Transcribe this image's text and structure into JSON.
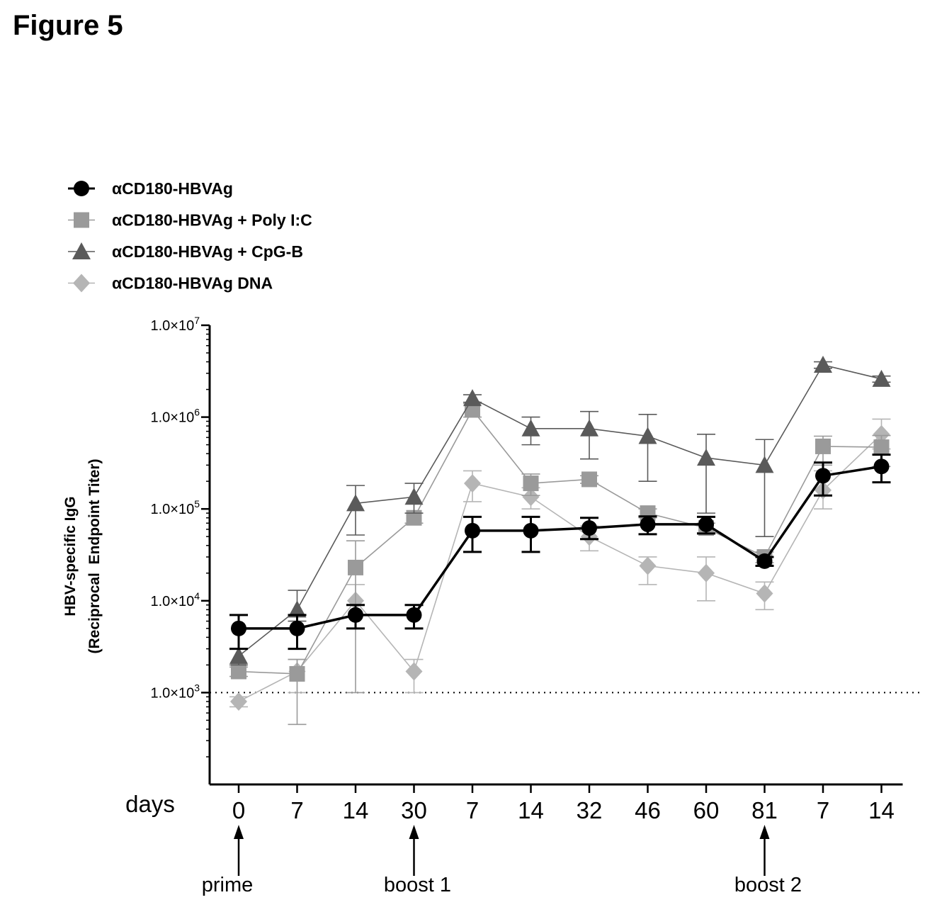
{
  "figure_label": "Figure 5",
  "chart_data": {
    "type": "line",
    "title": "",
    "xlabel": "days",
    "ylabel": "HBV-specific IgG",
    "ylabel_line2": "(Reciprocal  Endpoint Titer)",
    "y_scale": "log",
    "ylim": [
      100,
      10000000
    ],
    "y_ticks": [
      {
        "value": 1000,
        "label": "1.0×10",
        "exp": "3"
      },
      {
        "value": 10000,
        "label": "1.0×10",
        "exp": "4"
      },
      {
        "value": 100000,
        "label": "1.0×10",
        "exp": "5"
      },
      {
        "value": 1000000,
        "label": "1.0×10",
        "exp": "6"
      },
      {
        "value": 10000000,
        "label": "1.0×10",
        "exp": "7"
      }
    ],
    "categories": [
      "0",
      "7",
      "14",
      "30",
      "7",
      "14",
      "32",
      "46",
      "60",
      "81",
      "7",
      "14"
    ],
    "reference_line": 1000,
    "annotations": [
      {
        "label": "prime",
        "category_index": 0
      },
      {
        "label": "boost 1",
        "category_index": 3
      },
      {
        "label": "boost 2",
        "category_index": 9
      }
    ],
    "legend_position": "top-left",
    "series": [
      {
        "name": "αCD180-HBVAg",
        "marker": "circle",
        "color": "#000000",
        "values": [
          5000,
          5000,
          7000,
          7000,
          58000,
          58000,
          62000,
          68000,
          68000,
          27000,
          230000,
          290000
        ],
        "err_low": [
          3000,
          3000,
          5000,
          5000,
          34000,
          34000,
          47000,
          53000,
          54000,
          24000,
          140000,
          195000
        ],
        "err_high": [
          7000,
          7000,
          9000,
          9000,
          82000,
          82000,
          80000,
          83000,
          82000,
          30000,
          320000,
          390000
        ]
      },
      {
        "name": "αCD180-HBVAg + Poly I:C",
        "marker": "square",
        "color": "#9a9a9a",
        "values": [
          1700,
          1600,
          23000,
          80000,
          1200000,
          190000,
          210000,
          90000,
          62000,
          30000,
          480000,
          470000
        ],
        "err_low": [
          1500,
          450,
          1000,
          70000,
          1000000,
          140000,
          190000,
          80000,
          55000,
          26000,
          300000,
          290000
        ],
        "err_high": [
          1900,
          2300,
          45000,
          90000,
          1400000,
          240000,
          230000,
          100000,
          70000,
          34000,
          620000,
          630000
        ]
      },
      {
        "name": "αCD180-HBVAg + CpG-B",
        "marker": "triangle",
        "color": "#5a5a5a",
        "values": [
          2500,
          8000,
          115000,
          135000,
          1600000,
          750000,
          750000,
          620000,
          360000,
          300000,
          3700000,
          2600000
        ],
        "err_low": [
          2000,
          6000,
          52000,
          90000,
          1450000,
          500000,
          350000,
          200000,
          90000,
          50000,
          3400000,
          2400000
        ],
        "err_high": [
          3000,
          13000,
          180000,
          190000,
          1750000,
          1000000,
          1150000,
          1070000,
          650000,
          570000,
          4000000,
          2800000
        ]
      },
      {
        "name": "αCD180-HBVAg DNA",
        "marker": "diamond",
        "color": "#b5b5b5",
        "values": [
          800,
          1700,
          10000,
          1700,
          190000,
          135000,
          50000,
          24000,
          20000,
          12000,
          160000,
          650000
        ],
        "err_low": [
          700,
          1000,
          5000,
          1000,
          120000,
          100000,
          35000,
          15000,
          10000,
          8000,
          100000,
          450000
        ],
        "err_high": [
          900,
          2300,
          15000,
          2300,
          260000,
          170000,
          65000,
          30000,
          30000,
          16000,
          260000,
          950000
        ]
      }
    ]
  }
}
